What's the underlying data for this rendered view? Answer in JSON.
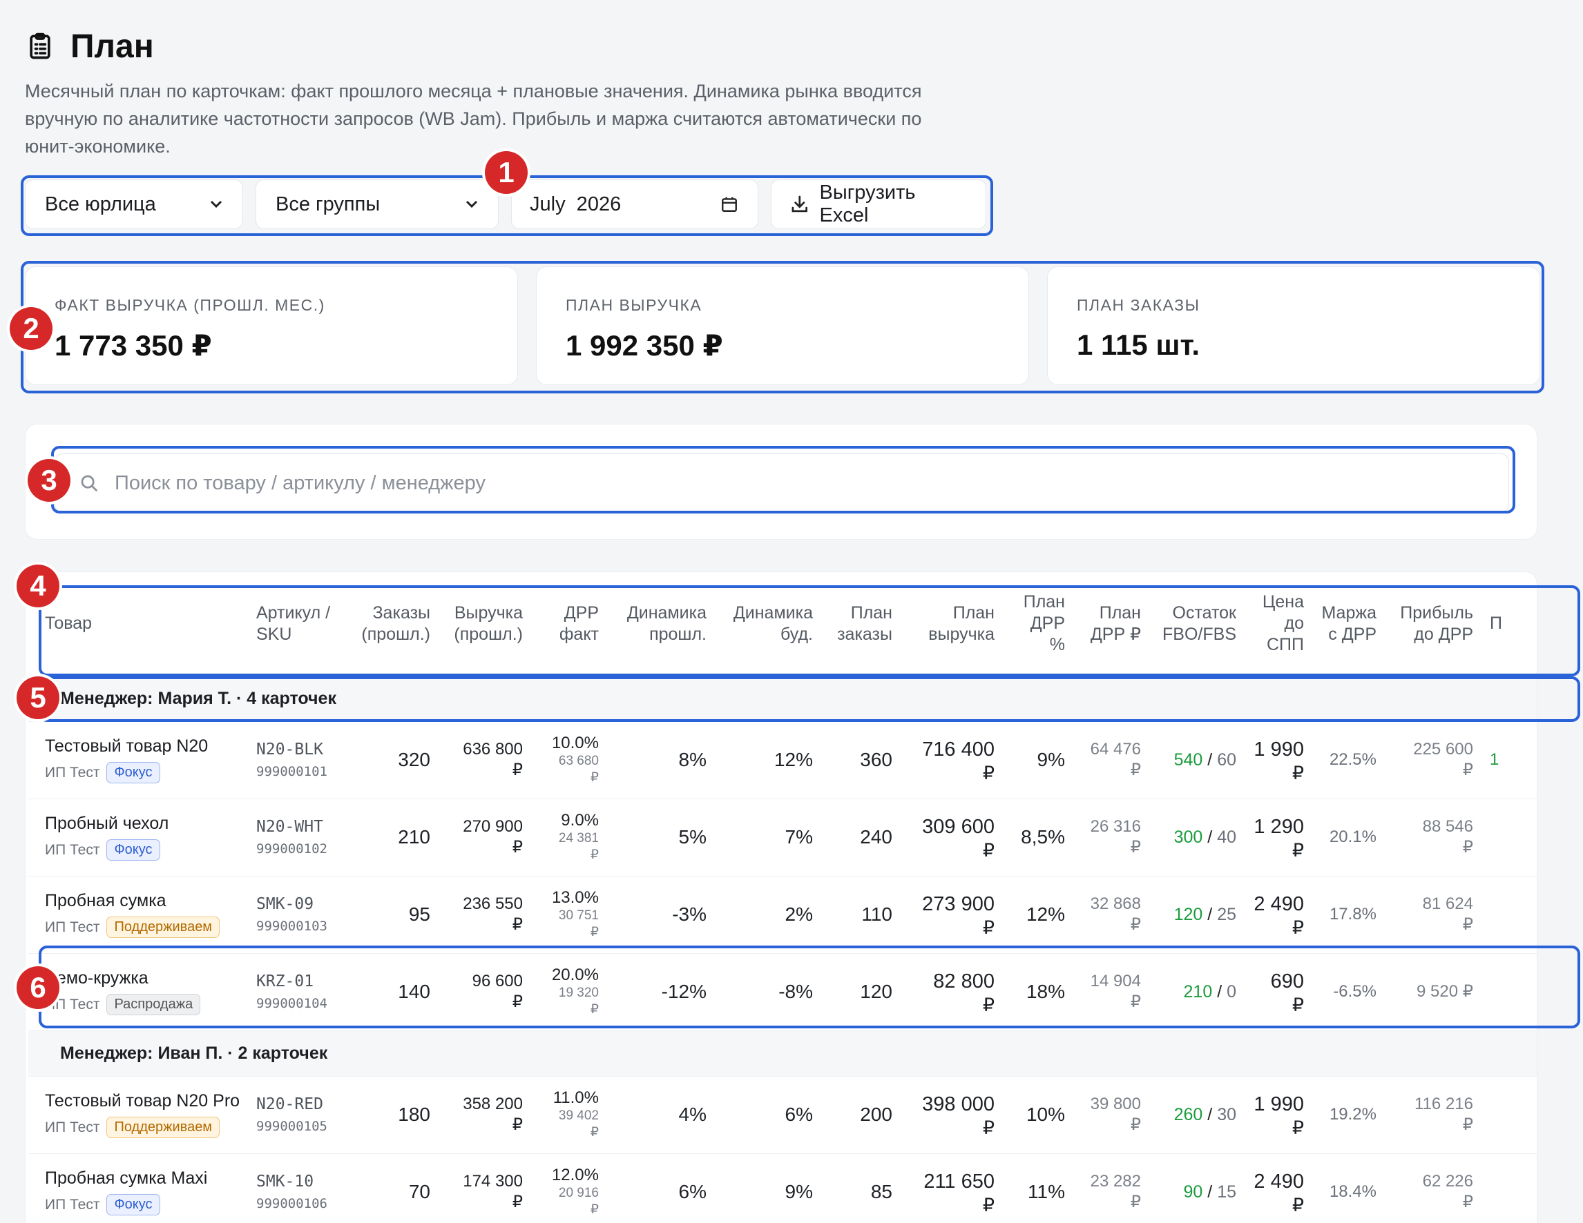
{
  "header": {
    "title": "План",
    "description": "Месячный план по карточкам: факт прошлого месяца + плановые значения. Динамика рынка вводится вручную по аналитике частотности запросов (WB Jam). Прибыль и маржа считаются автоматически по юнит-экономике."
  },
  "filters": {
    "entity": "Все юрлица",
    "group": "Все группы",
    "month": "July  2026",
    "export_label": "Выгрузить Excel"
  },
  "kpis": [
    {
      "label": "ФАКТ ВЫРУЧКА (ПРОШЛ. МЕС.)",
      "value": "1 773 350 ₽"
    },
    {
      "label": "ПЛАН ВЫРУЧКА",
      "value": "1 992 350 ₽"
    },
    {
      "label": "ПЛАН ЗАКАЗЫ",
      "value": "1 115 шт."
    }
  ],
  "search": {
    "placeholder": "Поиск по товару / артикулу / менеджеру"
  },
  "table": {
    "columns": {
      "product": "Товар",
      "sku": "Артикул / SKU",
      "orders_prev": "Заказы (прошл.)",
      "revenue_prev": "Выручка (прошл.)",
      "drr_fact": "ДРР факт",
      "dyn_prev": "Динамика прошл.",
      "dyn_next": "Динамика буд.",
      "plan_orders": "План заказы",
      "plan_revenue": "План выручка",
      "plan_drr_pct": "План ДРР %",
      "plan_drr_rub": "План ДРР ₽",
      "stock": "Остаток FBO/FBS",
      "price": "Цена до СПП",
      "margin": "Маржа с ДРР",
      "profit": "Прибыль до ДРР",
      "extra": "П"
    },
    "groups": [
      {
        "title": "Менеджер: Мария Т. · 4 карточек",
        "rows": [
          {
            "name": "Тестовый товар N20",
            "entity": "ИП Тест",
            "badge": "Фокус",
            "badge_type": "focus",
            "sku": "N20-BLK",
            "sku_id": "999000101",
            "orders": "320",
            "revenue": "636 800",
            "drr_pct": "10.0%",
            "drr_rub": "63 680",
            "dyn_prev": "8%",
            "dyn_next": "12%",
            "plan_orders": "360",
            "plan_revenue": "716 400",
            "plan_drr_pct": "9%",
            "plan_drr_rub": "64 476",
            "stock_fbo": "540",
            "stock_fbs": "60",
            "price": "1 990",
            "margin": "22.5%",
            "profit": "225 600",
            "extra": "1"
          },
          {
            "name": "Пробный чехол",
            "entity": "ИП Тест",
            "badge": "Фокус",
            "badge_type": "focus",
            "sku": "N20-WHT",
            "sku_id": "999000102",
            "orders": "210",
            "revenue": "270 900",
            "drr_pct": "9.0%",
            "drr_rub": "24 381",
            "dyn_prev": "5%",
            "dyn_next": "7%",
            "plan_orders": "240",
            "plan_revenue": "309 600",
            "plan_drr_pct": "8,5%",
            "plan_drr_rub": "26 316",
            "stock_fbo": "300",
            "stock_fbs": "40",
            "price": "1 290",
            "margin": "20.1%",
            "profit": "88 546",
            "extra": ""
          },
          {
            "name": "Пробная сумка",
            "entity": "ИП Тест",
            "badge": "Поддерживаем",
            "badge_type": "keep",
            "sku": "SMK-09",
            "sku_id": "999000103",
            "orders": "95",
            "revenue": "236 550",
            "drr_pct": "13.0%",
            "drr_rub": "30 751",
            "dyn_prev": "-3%",
            "dyn_next": "2%",
            "plan_orders": "110",
            "plan_revenue": "273 900",
            "plan_drr_pct": "12%",
            "plan_drr_rub": "32 868",
            "stock_fbo": "120",
            "stock_fbs": "25",
            "price": "2 490",
            "margin": "17.8%",
            "profit": "81 624",
            "extra": ""
          },
          {
            "name": "Демо-кружка",
            "entity": "ИП Тест",
            "badge": "Распродажа",
            "badge_type": "sale",
            "sku": "KRZ-01",
            "sku_id": "999000104",
            "orders": "140",
            "revenue": "96 600",
            "drr_pct": "20.0%",
            "drr_rub": "19 320",
            "dyn_prev": "-12%",
            "dyn_next": "-8%",
            "plan_orders": "120",
            "plan_revenue": "82 800",
            "plan_drr_pct": "18%",
            "plan_drr_rub": "14 904",
            "stock_fbo": "210",
            "stock_fbs": "0",
            "price": "690",
            "margin": "-6.5%",
            "profit": "9 520 ₽",
            "extra": ""
          }
        ]
      },
      {
        "title": "Менеджер: Иван П. · 2 карточек",
        "rows": [
          {
            "name": "Тестовый товар N20 Pro",
            "entity": "ИП Тест",
            "badge": "Поддерживаем",
            "badge_type": "keep",
            "sku": "N20-RED",
            "sku_id": "999000105",
            "orders": "180",
            "revenue": "358 200",
            "drr_pct": "11.0%",
            "drr_rub": "39 402",
            "dyn_prev": "4%",
            "dyn_next": "6%",
            "plan_orders": "200",
            "plan_revenue": "398 000",
            "plan_drr_pct": "10%",
            "plan_drr_rub": "39 800",
            "stock_fbo": "260",
            "stock_fbs": "30",
            "price": "1 990",
            "margin": "19.2%",
            "profit": "116 216",
            "extra": ""
          },
          {
            "name": "Пробная сумка Maxi",
            "entity": "ИП Тест",
            "badge": "Фокус",
            "badge_type": "focus",
            "sku": "SMK-10",
            "sku_id": "999000106",
            "orders": "70",
            "revenue": "174 300",
            "drr_pct": "12.0%",
            "drr_rub": "20 916",
            "dyn_prev": "6%",
            "dyn_next": "9%",
            "plan_orders": "85",
            "plan_revenue": "211 650",
            "plan_drr_pct": "11%",
            "plan_drr_rub": "23 282",
            "stock_fbo": "90",
            "stock_fbs": "15",
            "price": "2 490",
            "margin": "18.4%",
            "profit": "62 226",
            "extra": ""
          }
        ]
      }
    ],
    "currency": "₽"
  },
  "annotations": [
    "1",
    "2",
    "3",
    "4",
    "5",
    "6"
  ],
  "colors": {
    "accent": "#2a62d8",
    "marker": "#d62828",
    "positive": "#1c9c3d"
  }
}
